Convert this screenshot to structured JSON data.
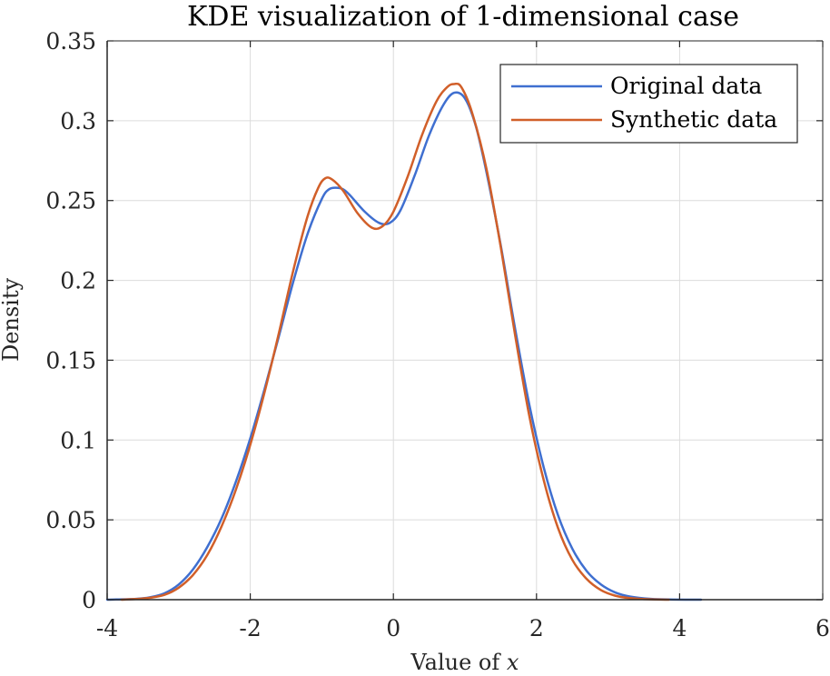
{
  "chart_data": {
    "type": "line",
    "title": "KDE visualization of 1-dimensional case",
    "xlabel_prefix": "Value of ",
    "xlabel_var": "x",
    "ylabel": "Density",
    "xlim": [
      -4,
      6
    ],
    "ylim": [
      0,
      0.35
    ],
    "xticks": [
      -4,
      -2,
      0,
      2,
      4,
      6
    ],
    "xtick_labels": [
      "-4",
      "-2",
      "0",
      "2",
      "4",
      "6"
    ],
    "yticks": [
      0,
      0.05,
      0.1,
      0.15,
      0.2,
      0.25,
      0.3,
      0.35
    ],
    "ytick_labels": [
      "0",
      "0.05",
      "0.1",
      "0.15",
      "0.2",
      "0.25",
      "0.3",
      "0.35"
    ],
    "grid": true,
    "legend_position": "top-right",
    "series": [
      {
        "name": "Original data",
        "color": "#3f6fd0",
        "points": [
          [
            -4.0,
            0.0
          ],
          [
            -3.6,
            0.0005
          ],
          [
            -3.4,
            0.0015
          ],
          [
            -3.2,
            0.004
          ],
          [
            -3.0,
            0.0095
          ],
          [
            -2.8,
            0.019
          ],
          [
            -2.6,
            0.033
          ],
          [
            -2.4,
            0.051
          ],
          [
            -2.2,
            0.074
          ],
          [
            -2.0,
            0.101
          ],
          [
            -1.8,
            0.132
          ],
          [
            -1.6,
            0.165
          ],
          [
            -1.4,
            0.199
          ],
          [
            -1.2,
            0.229
          ],
          [
            -1.0,
            0.251
          ],
          [
            -0.9,
            0.257
          ],
          [
            -0.8,
            0.258
          ],
          [
            -0.7,
            0.257
          ],
          [
            -0.6,
            0.253
          ],
          [
            -0.4,
            0.243
          ],
          [
            -0.2,
            0.236
          ],
          [
            -0.05,
            0.236
          ],
          [
            0.1,
            0.244
          ],
          [
            0.3,
            0.266
          ],
          [
            0.5,
            0.291
          ],
          [
            0.7,
            0.31
          ],
          [
            0.85,
            0.3175
          ],
          [
            1.0,
            0.314
          ],
          [
            1.15,
            0.297
          ],
          [
            1.3,
            0.268
          ],
          [
            1.5,
            0.222
          ],
          [
            1.7,
            0.17
          ],
          [
            1.9,
            0.122
          ],
          [
            2.1,
            0.083
          ],
          [
            2.3,
            0.053
          ],
          [
            2.5,
            0.032
          ],
          [
            2.7,
            0.018
          ],
          [
            2.9,
            0.0095
          ],
          [
            3.1,
            0.0045
          ],
          [
            3.3,
            0.002
          ],
          [
            3.6,
            0.0005
          ],
          [
            3.9,
            0.0001
          ],
          [
            4.3,
            0.0
          ]
        ]
      },
      {
        "name": "Synthetic data",
        "color": "#d15f29",
        "points": [
          [
            -3.8,
            0.0
          ],
          [
            -3.6,
            0.0004
          ],
          [
            -3.4,
            0.0012
          ],
          [
            -3.2,
            0.003
          ],
          [
            -3.0,
            0.0075
          ],
          [
            -2.8,
            0.0155
          ],
          [
            -2.6,
            0.028
          ],
          [
            -2.4,
            0.046
          ],
          [
            -2.2,
            0.069
          ],
          [
            -2.0,
            0.097
          ],
          [
            -1.8,
            0.13
          ],
          [
            -1.6,
            0.167
          ],
          [
            -1.4,
            0.206
          ],
          [
            -1.2,
            0.24
          ],
          [
            -1.05,
            0.258
          ],
          [
            -0.95,
            0.264
          ],
          [
            -0.85,
            0.263
          ],
          [
            -0.7,
            0.256
          ],
          [
            -0.5,
            0.242
          ],
          [
            -0.3,
            0.233
          ],
          [
            -0.15,
            0.234
          ],
          [
            0.0,
            0.243
          ],
          [
            0.2,
            0.265
          ],
          [
            0.4,
            0.291
          ],
          [
            0.6,
            0.312
          ],
          [
            0.75,
            0.321
          ],
          [
            0.85,
            0.323
          ],
          [
            0.95,
            0.321
          ],
          [
            1.1,
            0.305
          ],
          [
            1.3,
            0.27
          ],
          [
            1.5,
            0.221
          ],
          [
            1.7,
            0.166
          ],
          [
            1.9,
            0.115
          ],
          [
            2.1,
            0.075
          ],
          [
            2.3,
            0.045
          ],
          [
            2.5,
            0.025
          ],
          [
            2.7,
            0.013
          ],
          [
            2.9,
            0.006
          ],
          [
            3.1,
            0.0025
          ],
          [
            3.3,
            0.001
          ],
          [
            3.6,
            0.0002
          ],
          [
            3.85,
            0.0
          ]
        ]
      }
    ]
  }
}
